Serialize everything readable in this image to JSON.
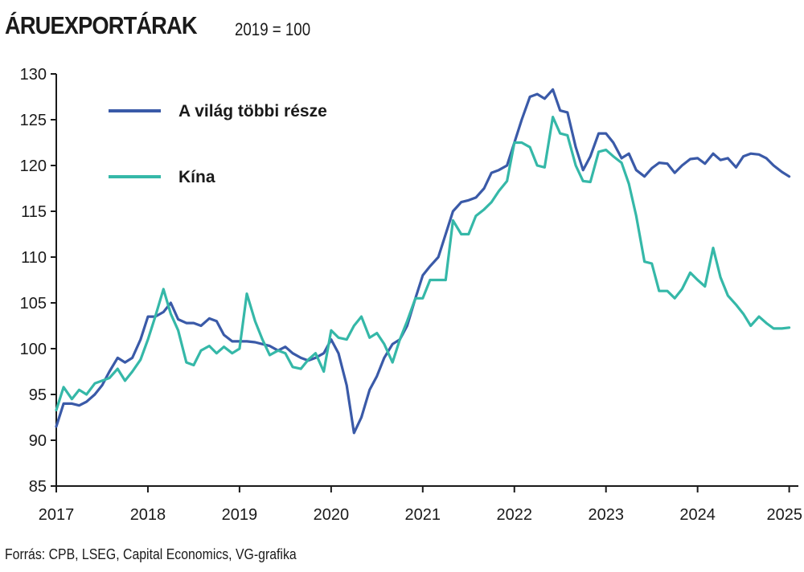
{
  "header": {
    "title": "ÁRUEXPORTÁRAK",
    "subtitle": "2019 = 100"
  },
  "source": "Forrás: CPB, LSEG, Capital Economics, VG-grafika",
  "colors": {
    "world": "#3a5aa8",
    "china": "#35b8a8",
    "axis": "#1a1a1a"
  },
  "chart_data": {
    "type": "line",
    "title": "ÁRUEXPORTÁRAK",
    "subtitle": "2019 = 100",
    "ylim": [
      85,
      130
    ],
    "yticks": [
      "85",
      "90",
      "95",
      "100",
      "105",
      "110",
      "115",
      "120",
      "125",
      "130"
    ],
    "xlim": [
      2017.0,
      2025.1
    ],
    "xticks": [
      "2017",
      "2018",
      "2019",
      "2020",
      "2021",
      "2022",
      "2023",
      "2024",
      "2025"
    ],
    "grid": false,
    "legend": "top-left",
    "series": [
      {
        "name": "A világ többi része",
        "color": "#3a5aa8",
        "points": [
          [
            2017.0,
            91.5
          ],
          [
            2017.08,
            94.0
          ],
          [
            2017.17,
            94.0
          ],
          [
            2017.25,
            93.8
          ],
          [
            2017.33,
            94.2
          ],
          [
            2017.42,
            95.0
          ],
          [
            2017.5,
            96.0
          ],
          [
            2017.58,
            97.5
          ],
          [
            2017.67,
            99.0
          ],
          [
            2017.75,
            98.5
          ],
          [
            2017.83,
            99.0
          ],
          [
            2017.92,
            101.0
          ],
          [
            2018.0,
            103.5
          ],
          [
            2018.08,
            103.5
          ],
          [
            2018.17,
            104.0
          ],
          [
            2018.25,
            105.0
          ],
          [
            2018.33,
            103.2
          ],
          [
            2018.42,
            102.8
          ],
          [
            2018.5,
            102.8
          ],
          [
            2018.58,
            102.5
          ],
          [
            2018.67,
            103.3
          ],
          [
            2018.75,
            103.0
          ],
          [
            2018.83,
            101.5
          ],
          [
            2018.92,
            100.8
          ],
          [
            2019.0,
            100.8
          ],
          [
            2019.08,
            100.8
          ],
          [
            2019.17,
            100.7
          ],
          [
            2019.25,
            100.5
          ],
          [
            2019.33,
            100.3
          ],
          [
            2019.42,
            99.8
          ],
          [
            2019.5,
            100.2
          ],
          [
            2019.58,
            99.5
          ],
          [
            2019.67,
            99.0
          ],
          [
            2019.75,
            98.7
          ],
          [
            2019.83,
            99.0
          ],
          [
            2019.92,
            99.5
          ],
          [
            2020.0,
            101.0
          ],
          [
            2020.08,
            99.5
          ],
          [
            2020.17,
            96.0
          ],
          [
            2020.25,
            90.8
          ],
          [
            2020.33,
            92.5
          ],
          [
            2020.42,
            95.5
          ],
          [
            2020.5,
            97.0
          ],
          [
            2020.58,
            99.0
          ],
          [
            2020.67,
            100.5
          ],
          [
            2020.75,
            101.0
          ],
          [
            2020.83,
            102.5
          ],
          [
            2020.92,
            105.5
          ],
          [
            2021.0,
            108.0
          ],
          [
            2021.08,
            109.0
          ],
          [
            2021.17,
            110.0
          ],
          [
            2021.25,
            112.5
          ],
          [
            2021.33,
            115.0
          ],
          [
            2021.42,
            116.0
          ],
          [
            2021.5,
            116.2
          ],
          [
            2021.58,
            116.5
          ],
          [
            2021.67,
            117.5
          ],
          [
            2021.75,
            119.2
          ],
          [
            2021.83,
            119.5
          ],
          [
            2021.92,
            120.0
          ],
          [
            2022.0,
            122.5
          ],
          [
            2022.08,
            125.0
          ],
          [
            2022.17,
            127.5
          ],
          [
            2022.25,
            127.8
          ],
          [
            2022.33,
            127.3
          ],
          [
            2022.42,
            128.3
          ],
          [
            2022.5,
            126.0
          ],
          [
            2022.58,
            125.8
          ],
          [
            2022.67,
            122.0
          ],
          [
            2022.75,
            119.5
          ],
          [
            2022.83,
            121.0
          ],
          [
            2022.92,
            123.5
          ],
          [
            2023.0,
            123.5
          ],
          [
            2023.08,
            122.5
          ],
          [
            2023.17,
            120.8
          ],
          [
            2023.25,
            121.3
          ],
          [
            2023.33,
            119.5
          ],
          [
            2023.42,
            118.8
          ],
          [
            2023.5,
            119.7
          ],
          [
            2023.58,
            120.3
          ],
          [
            2023.67,
            120.2
          ],
          [
            2023.75,
            119.2
          ],
          [
            2023.83,
            120.0
          ],
          [
            2023.92,
            120.7
          ],
          [
            2024.0,
            120.8
          ],
          [
            2024.08,
            120.2
          ],
          [
            2024.17,
            121.3
          ],
          [
            2024.25,
            120.6
          ],
          [
            2024.33,
            120.8
          ],
          [
            2024.42,
            119.8
          ],
          [
            2024.5,
            121.0
          ],
          [
            2024.58,
            121.3
          ],
          [
            2024.67,
            121.2
          ],
          [
            2024.75,
            120.8
          ],
          [
            2024.83,
            120.0
          ],
          [
            2024.92,
            119.3
          ],
          [
            2025.0,
            118.8
          ]
        ]
      },
      {
        "name": "Kína",
        "color": "#35b8a8",
        "points": [
          [
            2017.0,
            93.3
          ],
          [
            2017.08,
            95.8
          ],
          [
            2017.17,
            94.5
          ],
          [
            2017.25,
            95.5
          ],
          [
            2017.33,
            95.0
          ],
          [
            2017.42,
            96.2
          ],
          [
            2017.5,
            96.5
          ],
          [
            2017.58,
            96.8
          ],
          [
            2017.67,
            97.8
          ],
          [
            2017.75,
            96.5
          ],
          [
            2017.83,
            97.5
          ],
          [
            2017.92,
            98.8
          ],
          [
            2018.0,
            101.0
          ],
          [
            2018.08,
            103.5
          ],
          [
            2018.17,
            106.5
          ],
          [
            2018.25,
            103.8
          ],
          [
            2018.33,
            102.0
          ],
          [
            2018.42,
            98.5
          ],
          [
            2018.5,
            98.2
          ],
          [
            2018.58,
            99.8
          ],
          [
            2018.67,
            100.3
          ],
          [
            2018.75,
            99.5
          ],
          [
            2018.83,
            100.2
          ],
          [
            2018.92,
            99.5
          ],
          [
            2019.0,
            100.0
          ],
          [
            2019.08,
            106.0
          ],
          [
            2019.17,
            103.0
          ],
          [
            2019.25,
            101.0
          ],
          [
            2019.33,
            99.3
          ],
          [
            2019.42,
            99.8
          ],
          [
            2019.5,
            99.5
          ],
          [
            2019.58,
            98.0
          ],
          [
            2019.67,
            97.8
          ],
          [
            2019.75,
            98.8
          ],
          [
            2019.83,
            99.5
          ],
          [
            2019.92,
            97.5
          ],
          [
            2020.0,
            102.0
          ],
          [
            2020.08,
            101.2
          ],
          [
            2020.17,
            101.0
          ],
          [
            2020.25,
            102.5
          ],
          [
            2020.33,
            103.5
          ],
          [
            2020.42,
            101.2
          ],
          [
            2020.5,
            101.7
          ],
          [
            2020.58,
            100.5
          ],
          [
            2020.67,
            98.5
          ],
          [
            2020.75,
            101.0
          ],
          [
            2020.83,
            103.0
          ],
          [
            2020.92,
            105.5
          ],
          [
            2021.0,
            105.5
          ],
          [
            2021.08,
            107.5
          ],
          [
            2021.17,
            107.5
          ],
          [
            2021.25,
            107.5
          ],
          [
            2021.33,
            114.0
          ],
          [
            2021.42,
            112.5
          ],
          [
            2021.5,
            112.5
          ],
          [
            2021.58,
            114.5
          ],
          [
            2021.67,
            115.2
          ],
          [
            2021.75,
            116.0
          ],
          [
            2021.83,
            117.2
          ],
          [
            2021.92,
            118.3
          ],
          [
            2022.0,
            122.5
          ],
          [
            2022.08,
            122.5
          ],
          [
            2022.17,
            122.0
          ],
          [
            2022.25,
            120.0
          ],
          [
            2022.33,
            119.8
          ],
          [
            2022.42,
            125.3
          ],
          [
            2022.5,
            123.5
          ],
          [
            2022.58,
            123.3
          ],
          [
            2022.67,
            120.0
          ],
          [
            2022.75,
            118.3
          ],
          [
            2022.83,
            118.2
          ],
          [
            2022.92,
            121.5
          ],
          [
            2023.0,
            121.7
          ],
          [
            2023.08,
            121.0
          ],
          [
            2023.17,
            120.3
          ],
          [
            2023.25,
            118.0
          ],
          [
            2023.33,
            114.5
          ],
          [
            2023.42,
            109.5
          ],
          [
            2023.5,
            109.3
          ],
          [
            2023.58,
            106.3
          ],
          [
            2023.67,
            106.3
          ],
          [
            2023.75,
            105.5
          ],
          [
            2023.83,
            106.5
          ],
          [
            2023.92,
            108.3
          ],
          [
            2024.0,
            107.5
          ],
          [
            2024.08,
            106.8
          ],
          [
            2024.17,
            111.0
          ],
          [
            2024.25,
            107.8
          ],
          [
            2024.33,
            105.8
          ],
          [
            2024.42,
            104.8
          ],
          [
            2024.5,
            103.8
          ],
          [
            2024.58,
            102.5
          ],
          [
            2024.67,
            103.5
          ],
          [
            2024.75,
            102.8
          ],
          [
            2024.83,
            102.2
          ],
          [
            2024.92,
            102.2
          ],
          [
            2025.0,
            102.3
          ]
        ]
      }
    ]
  }
}
